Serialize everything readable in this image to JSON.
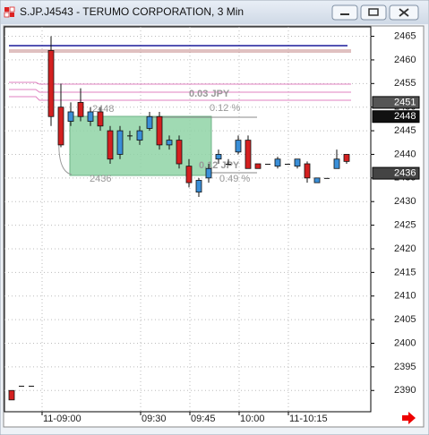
{
  "chart_data": {
    "type": "candlestick",
    "title": "S.JP.J4543 - TERUMO CORPORATION, 3 Min",
    "categories": [
      null,
      null,
      null,
      "11-09:00",
      null,
      null,
      null,
      null,
      null,
      null,
      null,
      null,
      null,
      "09:30",
      null,
      null,
      null,
      null,
      "09:45",
      null,
      null,
      null,
      null,
      "10:00",
      null,
      null,
      null,
      null,
      "11-10:15",
      null,
      null,
      null,
      null,
      null,
      null
    ],
    "open": [
      2390,
      2391,
      2391,
      null,
      2462,
      2450,
      2447,
      2451,
      2447,
      2449,
      2445,
      2440,
      2444,
      2443,
      2445.5,
      2448,
      2442,
      2443,
      2437.5,
      2432,
      2435,
      2439,
      2438,
      2440.5,
      2443,
      2438,
      2438,
      2437.5,
      2438,
      2437.5,
      2438,
      2434,
      2435,
      2437,
      2440
    ],
    "high": [
      2390,
      2391,
      2391,
      null,
      2465,
      2455,
      2451,
      2454,
      2450,
      2450,
      2446,
      2446,
      2445,
      2446,
      2449,
      2449,
      2444,
      2444,
      2439,
      2435,
      2438,
      2441,
      2439,
      2444,
      2444,
      2438,
      2438,
      2439.5,
      2438,
      2439,
      2438.5,
      2435,
      2435,
      2441,
      2440
    ],
    "low": [
      2388,
      2391,
      2391,
      null,
      2446,
      2441.5,
      2446,
      2447,
      2446,
      2445,
      2438,
      2439,
      2443,
      2442,
      2445,
      2441,
      2441,
      2437,
      2433,
      2431,
      2434,
      2438,
      2438,
      2440,
      2437,
      2437,
      2438,
      2437,
      2438,
      2437,
      2434,
      2434,
      2435,
      2437,
      2438
    ],
    "close": [
      2388,
      2391,
      2391,
      null,
      2448,
      2442,
      2449,
      2448,
      2449,
      2446,
      2439,
      2445,
      2444,
      2445,
      2448,
      2442,
      2443,
      2438,
      2434,
      2434.5,
      2437,
      2440,
      2438,
      2443,
      2437,
      2437,
      2438,
      2439,
      2438,
      2439,
      2435,
      2435,
      2435,
      2439,
      2438.5
    ],
    "up_color": "#3a8fd8",
    "down_color": "#d42020",
    "ylim": [
      2385.5,
      2467
    ],
    "yticks": [
      2390,
      2395,
      2400,
      2405,
      2410,
      2415,
      2420,
      2425,
      2430,
      2435,
      2440,
      2445,
      2450,
      2455,
      2460,
      2465
    ],
    "grid": true,
    "price_labels": [
      2451,
      2448,
      2436
    ],
    "annotations": [
      "0.03  JPY",
      "0.12 %",
      "2448",
      "2436",
      "0.12  JPY",
      "0.49 %"
    ]
  }
}
